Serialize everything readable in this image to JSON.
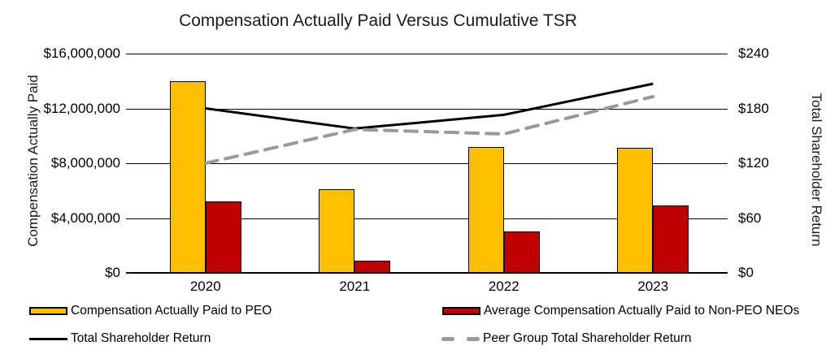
{
  "title": "Compensation Actually Paid Versus Cumulative TSR",
  "chart_data": {
    "type": "bar+line",
    "categories": [
      "2020",
      "2021",
      "2022",
      "2023"
    ],
    "bar_series": [
      {
        "name": "Compensation Actually Paid to PEO",
        "color": "#FFC000",
        "axis": "left",
        "values": [
          14000000,
          6100000,
          9200000,
          9100000
        ]
      },
      {
        "name": "Average Compensation Actually Paid to Non-PEO NEOs",
        "color": "#C00000",
        "axis": "left",
        "values": [
          5200000,
          900000,
          3000000,
          4900000
        ]
      }
    ],
    "line_series": [
      {
        "name": "Total Shareholder Return",
        "color": "#000000",
        "style": "solid",
        "axis": "right",
        "values": [
          180,
          158,
          173,
          207
        ]
      },
      {
        "name": "Peer Group Total Shareholder Return",
        "color": "#999999",
        "style": "dashed",
        "axis": "right",
        "values": [
          120,
          157,
          152,
          193
        ]
      }
    ],
    "left_axis": {
      "label": "Compensation Actually Paid",
      "ticks": [
        "$16,000,000",
        "$12,000,000",
        "$8,000,000",
        "$4,000,000",
        "$0"
      ],
      "min": 0,
      "max": 16000000,
      "tick_step": 4000000
    },
    "right_axis": {
      "label": "Total Shareholder Return",
      "ticks": [
        "$240",
        "$180",
        "$120",
        "$60",
        "$0"
      ],
      "min": 0,
      "max": 240,
      "tick_step": 60
    },
    "grid": true,
    "legend_position": "bottom"
  }
}
